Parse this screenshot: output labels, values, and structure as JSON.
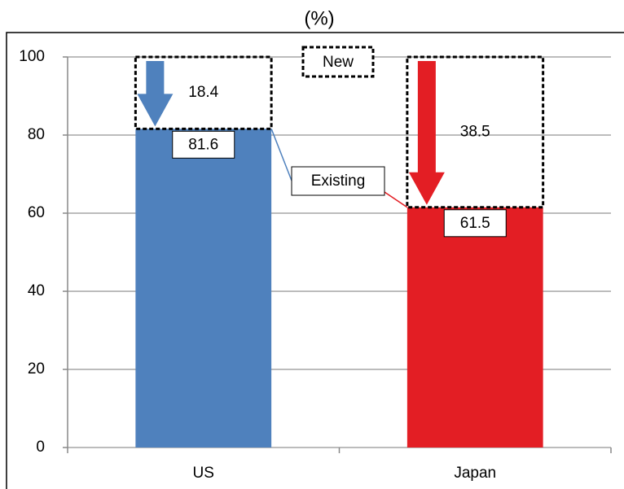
{
  "chart_data": {
    "type": "bar",
    "stacked": true,
    "subtitle": "(%)",
    "categories": [
      "US",
      "Japan"
    ],
    "series": [
      {
        "name": "Existing",
        "colors": [
          "#4f81bd",
          "#e31e24"
        ],
        "values": [
          81.6,
          61.5
        ]
      },
      {
        "name": "New",
        "color": "#000000",
        "values": [
          18.4,
          38.5
        ]
      }
    ],
    "ylim": [
      0,
      100
    ],
    "yticks": [
      0,
      20,
      40,
      60,
      80,
      100
    ],
    "grid": true
  }
}
